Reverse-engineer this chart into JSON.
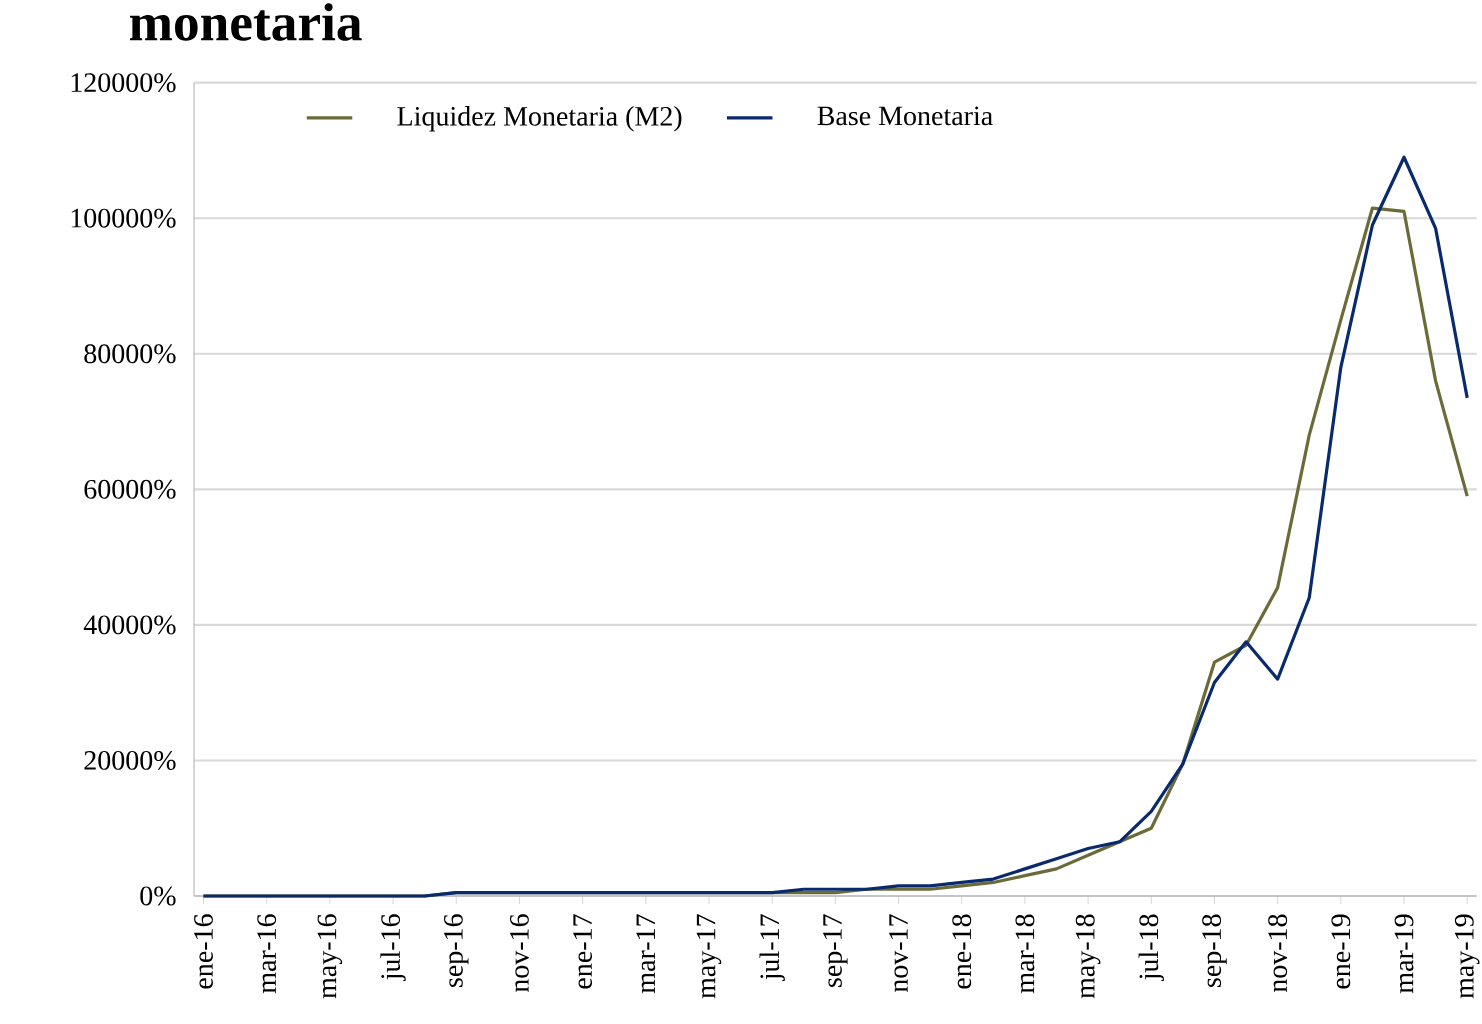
{
  "chart_data": {
    "type": "line",
    "title": "monetaria",
    "categories": [
      "ene-16",
      null,
      "mar-16",
      null,
      "may-16",
      null,
      "jul-16",
      null,
      "sep-16",
      null,
      "nov-16",
      null,
      "ene-17",
      null,
      "mar-17",
      null,
      "may-17",
      null,
      "jul-17",
      null,
      "sep-17",
      null,
      "nov-17",
      null,
      "ene-18",
      null,
      "mar-18",
      null,
      "may-18",
      null,
      "jul-18",
      null,
      "sep-18",
      null,
      "nov-18",
      null,
      "ene-19",
      null,
      "mar-19",
      null,
      "may-19"
    ],
    "series": [
      {
        "name": "Liquidez Monetaria (M2)",
        "color": "#6b6b3a",
        "values": [
          0,
          0,
          0,
          0,
          0,
          0,
          0,
          0,
          500,
          500,
          500,
          500,
          500,
          500,
          500,
          500,
          500,
          500,
          500,
          500,
          500,
          1000,
          1000,
          1000,
          1500,
          2000,
          3000,
          4000,
          6000,
          8000,
          10000,
          19500,
          34500,
          37000,
          45500,
          68000,
          85000,
          101500,
          101000,
          76000,
          59000
        ]
      },
      {
        "name": "Base Monetaria",
        "color": "#0a2a6e",
        "values": [
          0,
          0,
          0,
          0,
          0,
          0,
          0,
          0,
          500,
          500,
          500,
          500,
          500,
          500,
          500,
          500,
          500,
          500,
          500,
          1000,
          1000,
          1000,
          1500,
          1500,
          2000,
          2500,
          4000,
          5500,
          7000,
          8000,
          12500,
          19500,
          31500,
          37500,
          32000,
          44000,
          78000,
          99000,
          109000,
          98500,
          73500
        ]
      }
    ],
    "ylim": [
      0,
      120000
    ],
    "yticks": [
      {
        "value": 0,
        "label": "0%"
      },
      {
        "value": 20000,
        "label": "20000%"
      },
      {
        "value": 40000,
        "label": "40000%"
      },
      {
        "value": 60000,
        "label": "60000%"
      },
      {
        "value": 80000,
        "label": "80000%"
      },
      {
        "value": 100000,
        "label": "100000%"
      },
      {
        "value": 120000,
        "label": "120000%"
      }
    ],
    "grid": "y",
    "legend": "top left",
    "marker": "none",
    "line_style": "solid"
  }
}
